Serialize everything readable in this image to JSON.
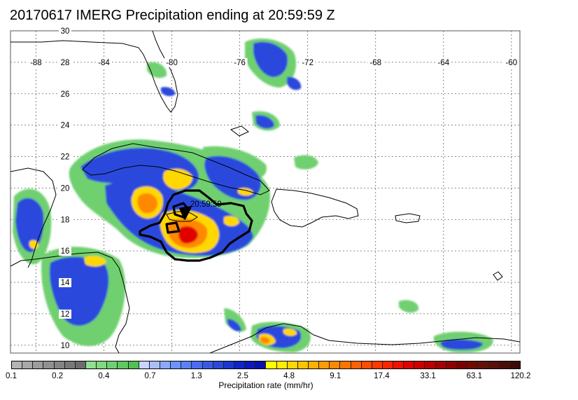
{
  "title": "20170617 IMERG Precipitation ending at 20:59:59 Z",
  "map": {
    "lon_labels": [
      "-88",
      "-84",
      "-80",
      "-76",
      "-72",
      "-68",
      "-64",
      "-60"
    ],
    "lat_labels": [
      "30",
      "28",
      "26",
      "24",
      "22",
      "20",
      "18",
      "16",
      "14",
      "12",
      "10"
    ],
    "lon_range": [
      -89.5,
      -59.5
    ],
    "lat_range": [
      9.5,
      30
    ],
    "gridlines": true,
    "storm_annotation": "20:59:59",
    "features": [
      "florida-coast",
      "cuba",
      "yucatan-coast",
      "central-america-coast",
      "jamaica",
      "hispaniola",
      "puerto-rico",
      "venezuela-colombia-coast",
      "storm-track-contour",
      "precipitation-field"
    ]
  },
  "colorbar": {
    "colors": [
      "#b4b4b4",
      "#a8a8a8",
      "#9c9c9c",
      "#909090",
      "#848484",
      "#787878",
      "#6c6c6c",
      "#90e090",
      "#80d880",
      "#70d070",
      "#60c860",
      "#50c050",
      "#c8d4ff",
      "#aabeff",
      "#8ca8ff",
      "#6e92ff",
      "#5a80f8",
      "#4a6cf0",
      "#3a5ae6",
      "#2b48dc",
      "#1c36d2",
      "#0f24c8",
      "#0a18bc",
      "#0810ae",
      "#ffff00",
      "#ffec00",
      "#ffd800",
      "#ffc400",
      "#ffb000",
      "#ff9c00",
      "#ff8800",
      "#ff7400",
      "#ff6000",
      "#ff4c00",
      "#ff3800",
      "#ff2400",
      "#f01000",
      "#e00000",
      "#cc0000",
      "#b80000",
      "#a40000",
      "#900000",
      "#7c0000",
      "#700a00",
      "#641208",
      "#581008",
      "#4c0c08",
      "#400808"
    ],
    "ticks": [
      "0.1",
      "0.2",
      "0.4",
      "0.7",
      "1.3",
      "2.5",
      "4.8",
      "9.1",
      "17.4",
      "33.1",
      "63.1",
      "120.2"
    ],
    "label": "Precipitation rate (mm/hr)"
  }
}
